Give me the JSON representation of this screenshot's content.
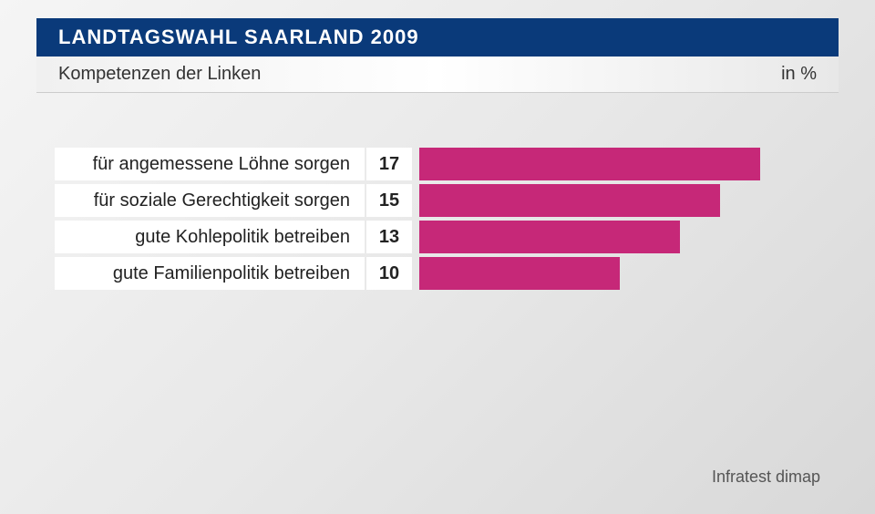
{
  "header": {
    "title": "LANDTAGSWAHL SAARLAND 2009"
  },
  "subtitle": {
    "text": "Kompetenzen der Linken",
    "unit": "in %"
  },
  "chart": {
    "type": "bar",
    "bar_color": "#c62878",
    "label_bg": "#ffffff",
    "value_bg": "#ffffff",
    "max_value": 20,
    "label_fontsize": 20,
    "value_fontsize": 20,
    "text_color": "#222222",
    "items": [
      {
        "label": "für angemessene Löhne sorgen",
        "value": 17
      },
      {
        "label": "für soziale Gerechtigkeit sorgen",
        "value": 15
      },
      {
        "label": "gute Kohlepolitik betreiben",
        "value": 13
      },
      {
        "label": "gute Familienpolitik betreiben",
        "value": 10
      }
    ]
  },
  "source": "Infratest dimap",
  "colors": {
    "header_bg": "#0a3a7a",
    "header_text": "#ffffff",
    "body_bg_start": "#f5f5f5",
    "body_bg_end": "#d8d8d8"
  }
}
